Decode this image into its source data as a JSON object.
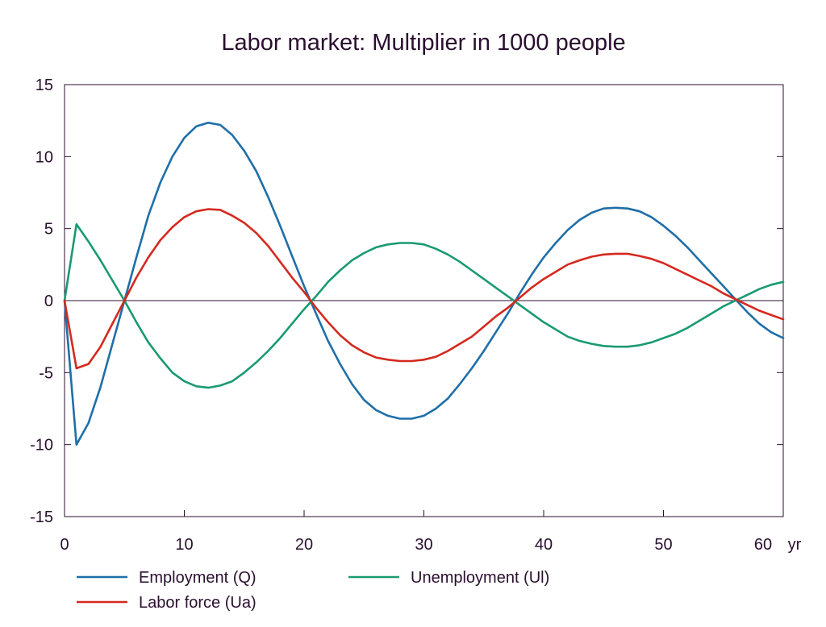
{
  "chart_data": {
    "type": "line",
    "title": "Labor market: Multiplier in 1000 people",
    "xlabel": "",
    "ylabel": "",
    "x_unit": "yr",
    "xlim": [
      0,
      60
    ],
    "ylim": [
      -15,
      15
    ],
    "x_ticks": [
      0,
      10,
      20,
      30,
      40,
      50,
      60
    ],
    "y_ticks": [
      -15,
      -10,
      -5,
      0,
      5,
      10,
      15
    ],
    "grid": false,
    "legend_position": "bottom",
    "series": [
      {
        "name": "Employment (Q)",
        "color": "#1f6fa8",
        "x": [
          0,
          1,
          2,
          3,
          4,
          5,
          6,
          7,
          8,
          9,
          10,
          11,
          12,
          13,
          14,
          15,
          16,
          17,
          18,
          19,
          20,
          21,
          22,
          23,
          24,
          25,
          26,
          27,
          28,
          29,
          30,
          31,
          32,
          33,
          34,
          35,
          36,
          37,
          38,
          39,
          40,
          41,
          42,
          43,
          44,
          45,
          46,
          47,
          48,
          49,
          50,
          51,
          52,
          53,
          54,
          55,
          56,
          57,
          58,
          59,
          60
        ],
        "y": [
          0,
          -10.0,
          -8.5,
          -6.0,
          -3.0,
          0,
          3.0,
          5.9,
          8.2,
          10.0,
          11.3,
          12.1,
          12.35,
          12.2,
          11.5,
          10.4,
          9.0,
          7.2,
          5.2,
          3.1,
          1.0,
          -0.9,
          -2.8,
          -4.4,
          -5.8,
          -6.9,
          -7.6,
          -8.0,
          -8.2,
          -8.2,
          -8.0,
          -7.5,
          -6.8,
          -5.8,
          -4.7,
          -3.5,
          -2.2,
          -0.9,
          0.5,
          1.8,
          3.0,
          4.0,
          4.9,
          5.6,
          6.1,
          6.4,
          6.45,
          6.4,
          6.2,
          5.8,
          5.2,
          4.5,
          3.7,
          2.8,
          1.9,
          1.0,
          0.1,
          -0.8,
          -1.6,
          -2.2,
          -2.6
        ]
      },
      {
        "name": "Unemployment (Ul)",
        "color": "#1a9a72",
        "x": [
          0,
          1,
          2,
          3,
          4,
          5,
          6,
          7,
          8,
          9,
          10,
          11,
          12,
          13,
          14,
          15,
          16,
          17,
          18,
          19,
          20,
          21,
          22,
          23,
          24,
          25,
          26,
          27,
          28,
          29,
          30,
          31,
          32,
          33,
          34,
          35,
          36,
          37,
          38,
          39,
          40,
          41,
          42,
          43,
          44,
          45,
          46,
          47,
          48,
          49,
          50,
          51,
          52,
          53,
          54,
          55,
          56,
          57,
          58,
          59,
          60
        ],
        "y": [
          0,
          5.3,
          4.1,
          2.8,
          1.4,
          0,
          -1.5,
          -2.9,
          -4.0,
          -5.0,
          -5.6,
          -5.95,
          -6.05,
          -5.9,
          -5.6,
          -5.0,
          -4.3,
          -3.5,
          -2.6,
          -1.6,
          -0.6,
          0.3,
          1.3,
          2.1,
          2.8,
          3.3,
          3.7,
          3.9,
          4.0,
          4.0,
          3.9,
          3.6,
          3.2,
          2.7,
          2.1,
          1.5,
          0.9,
          0.3,
          -0.3,
          -0.9,
          -1.5,
          -2.0,
          -2.5,
          -2.8,
          -3.0,
          -3.15,
          -3.2,
          -3.2,
          -3.1,
          -2.9,
          -2.6,
          -2.3,
          -1.9,
          -1.4,
          -0.9,
          -0.4,
          0.0,
          0.4,
          0.8,
          1.1,
          1.3
        ]
      },
      {
        "name": "Labor force (Ua)",
        "color": "#d4291f",
        "x": [
          0,
          1,
          2,
          3,
          4,
          5,
          6,
          7,
          8,
          9,
          10,
          11,
          12,
          13,
          14,
          15,
          16,
          17,
          18,
          19,
          20,
          21,
          22,
          23,
          24,
          25,
          26,
          27,
          28,
          29,
          30,
          31,
          32,
          33,
          34,
          35,
          36,
          37,
          38,
          39,
          40,
          41,
          42,
          43,
          44,
          45,
          46,
          47,
          48,
          49,
          50,
          51,
          52,
          53,
          54,
          55,
          56,
          57,
          58,
          59,
          60
        ],
        "y": [
          0,
          -4.7,
          -4.4,
          -3.2,
          -1.6,
          0,
          1.6,
          3.0,
          4.2,
          5.1,
          5.8,
          6.2,
          6.35,
          6.3,
          5.9,
          5.4,
          4.7,
          3.8,
          2.7,
          1.6,
          0.6,
          -0.5,
          -1.5,
          -2.4,
          -3.1,
          -3.6,
          -3.95,
          -4.1,
          -4.2,
          -4.2,
          -4.1,
          -3.9,
          -3.5,
          -3.0,
          -2.5,
          -1.8,
          -1.1,
          -0.5,
          0.2,
          0.9,
          1.5,
          2.0,
          2.5,
          2.8,
          3.05,
          3.2,
          3.25,
          3.25,
          3.1,
          2.9,
          2.6,
          2.2,
          1.8,
          1.4,
          1.0,
          0.5,
          0.1,
          -0.3,
          -0.7,
          -1.0,
          -1.3
        ]
      }
    ]
  }
}
